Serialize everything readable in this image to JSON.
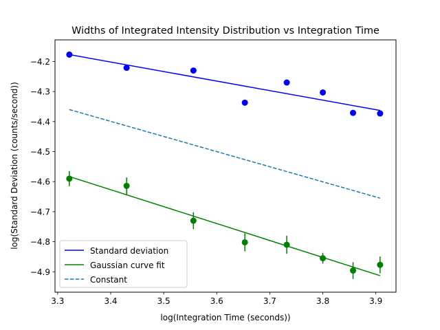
{
  "chart_data": {
    "type": "scatter",
    "title": "Widths of Integrated Intensity Distribution vs Integration Time",
    "xlabel": "log(Integration Time (seconds))",
    "ylabel": "log(Standard Deviation (counts/second))",
    "xlim": [
      3.295,
      3.938
    ],
    "ylim": [
      -4.968,
      -4.128
    ],
    "xticks": [
      3.3,
      3.4,
      3.5,
      3.6,
      3.7,
      3.8,
      3.9
    ],
    "xtick_labels": [
      "3.3",
      "3.4",
      "3.5",
      "3.6",
      "3.7",
      "3.8",
      "3.9"
    ],
    "yticks": [
      -4.2,
      -4.3,
      -4.4,
      -4.5,
      -4.6,
      -4.7,
      -4.8,
      -4.9
    ],
    "ytick_labels": [
      "−4.2",
      "−4.3",
      "−4.4",
      "−4.5",
      "−4.6",
      "−4.7",
      "−4.8",
      "−4.9"
    ],
    "grid": false,
    "legend_position": "lower-left",
    "x": [
      3.322,
      3.43,
      3.556,
      3.653,
      3.732,
      3.8,
      3.857,
      3.908
    ],
    "series": [
      {
        "name": "Standard deviation",
        "color": "#0000ff",
        "points": [
          -4.177,
          -4.221,
          -4.23,
          -4.337,
          -4.27,
          -4.303,
          -4.371,
          -4.373
        ],
        "fit_line": {
          "x": [
            3.322,
            3.908
          ],
          "y": [
            -4.177,
            -4.363
          ]
        }
      },
      {
        "name": "Gaussian curve fit",
        "color": "#008000",
        "points": [
          -4.59,
          -4.614,
          -4.73,
          -4.802,
          -4.81,
          -4.855,
          -4.896,
          -4.877
        ],
        "errors": [
          0.025,
          0.028,
          0.028,
          0.03,
          0.03,
          0.018,
          0.028,
          0.028
        ],
        "fit_line": {
          "x": [
            3.322,
            3.908
          ],
          "y": [
            -4.583,
            -4.913
          ]
        }
      },
      {
        "name": "Constant",
        "color": "#1f77b4",
        "line_style": "dashed",
        "fit_line": {
          "x": [
            3.322,
            3.908
          ],
          "y": [
            -4.36,
            -4.655
          ]
        }
      }
    ]
  }
}
